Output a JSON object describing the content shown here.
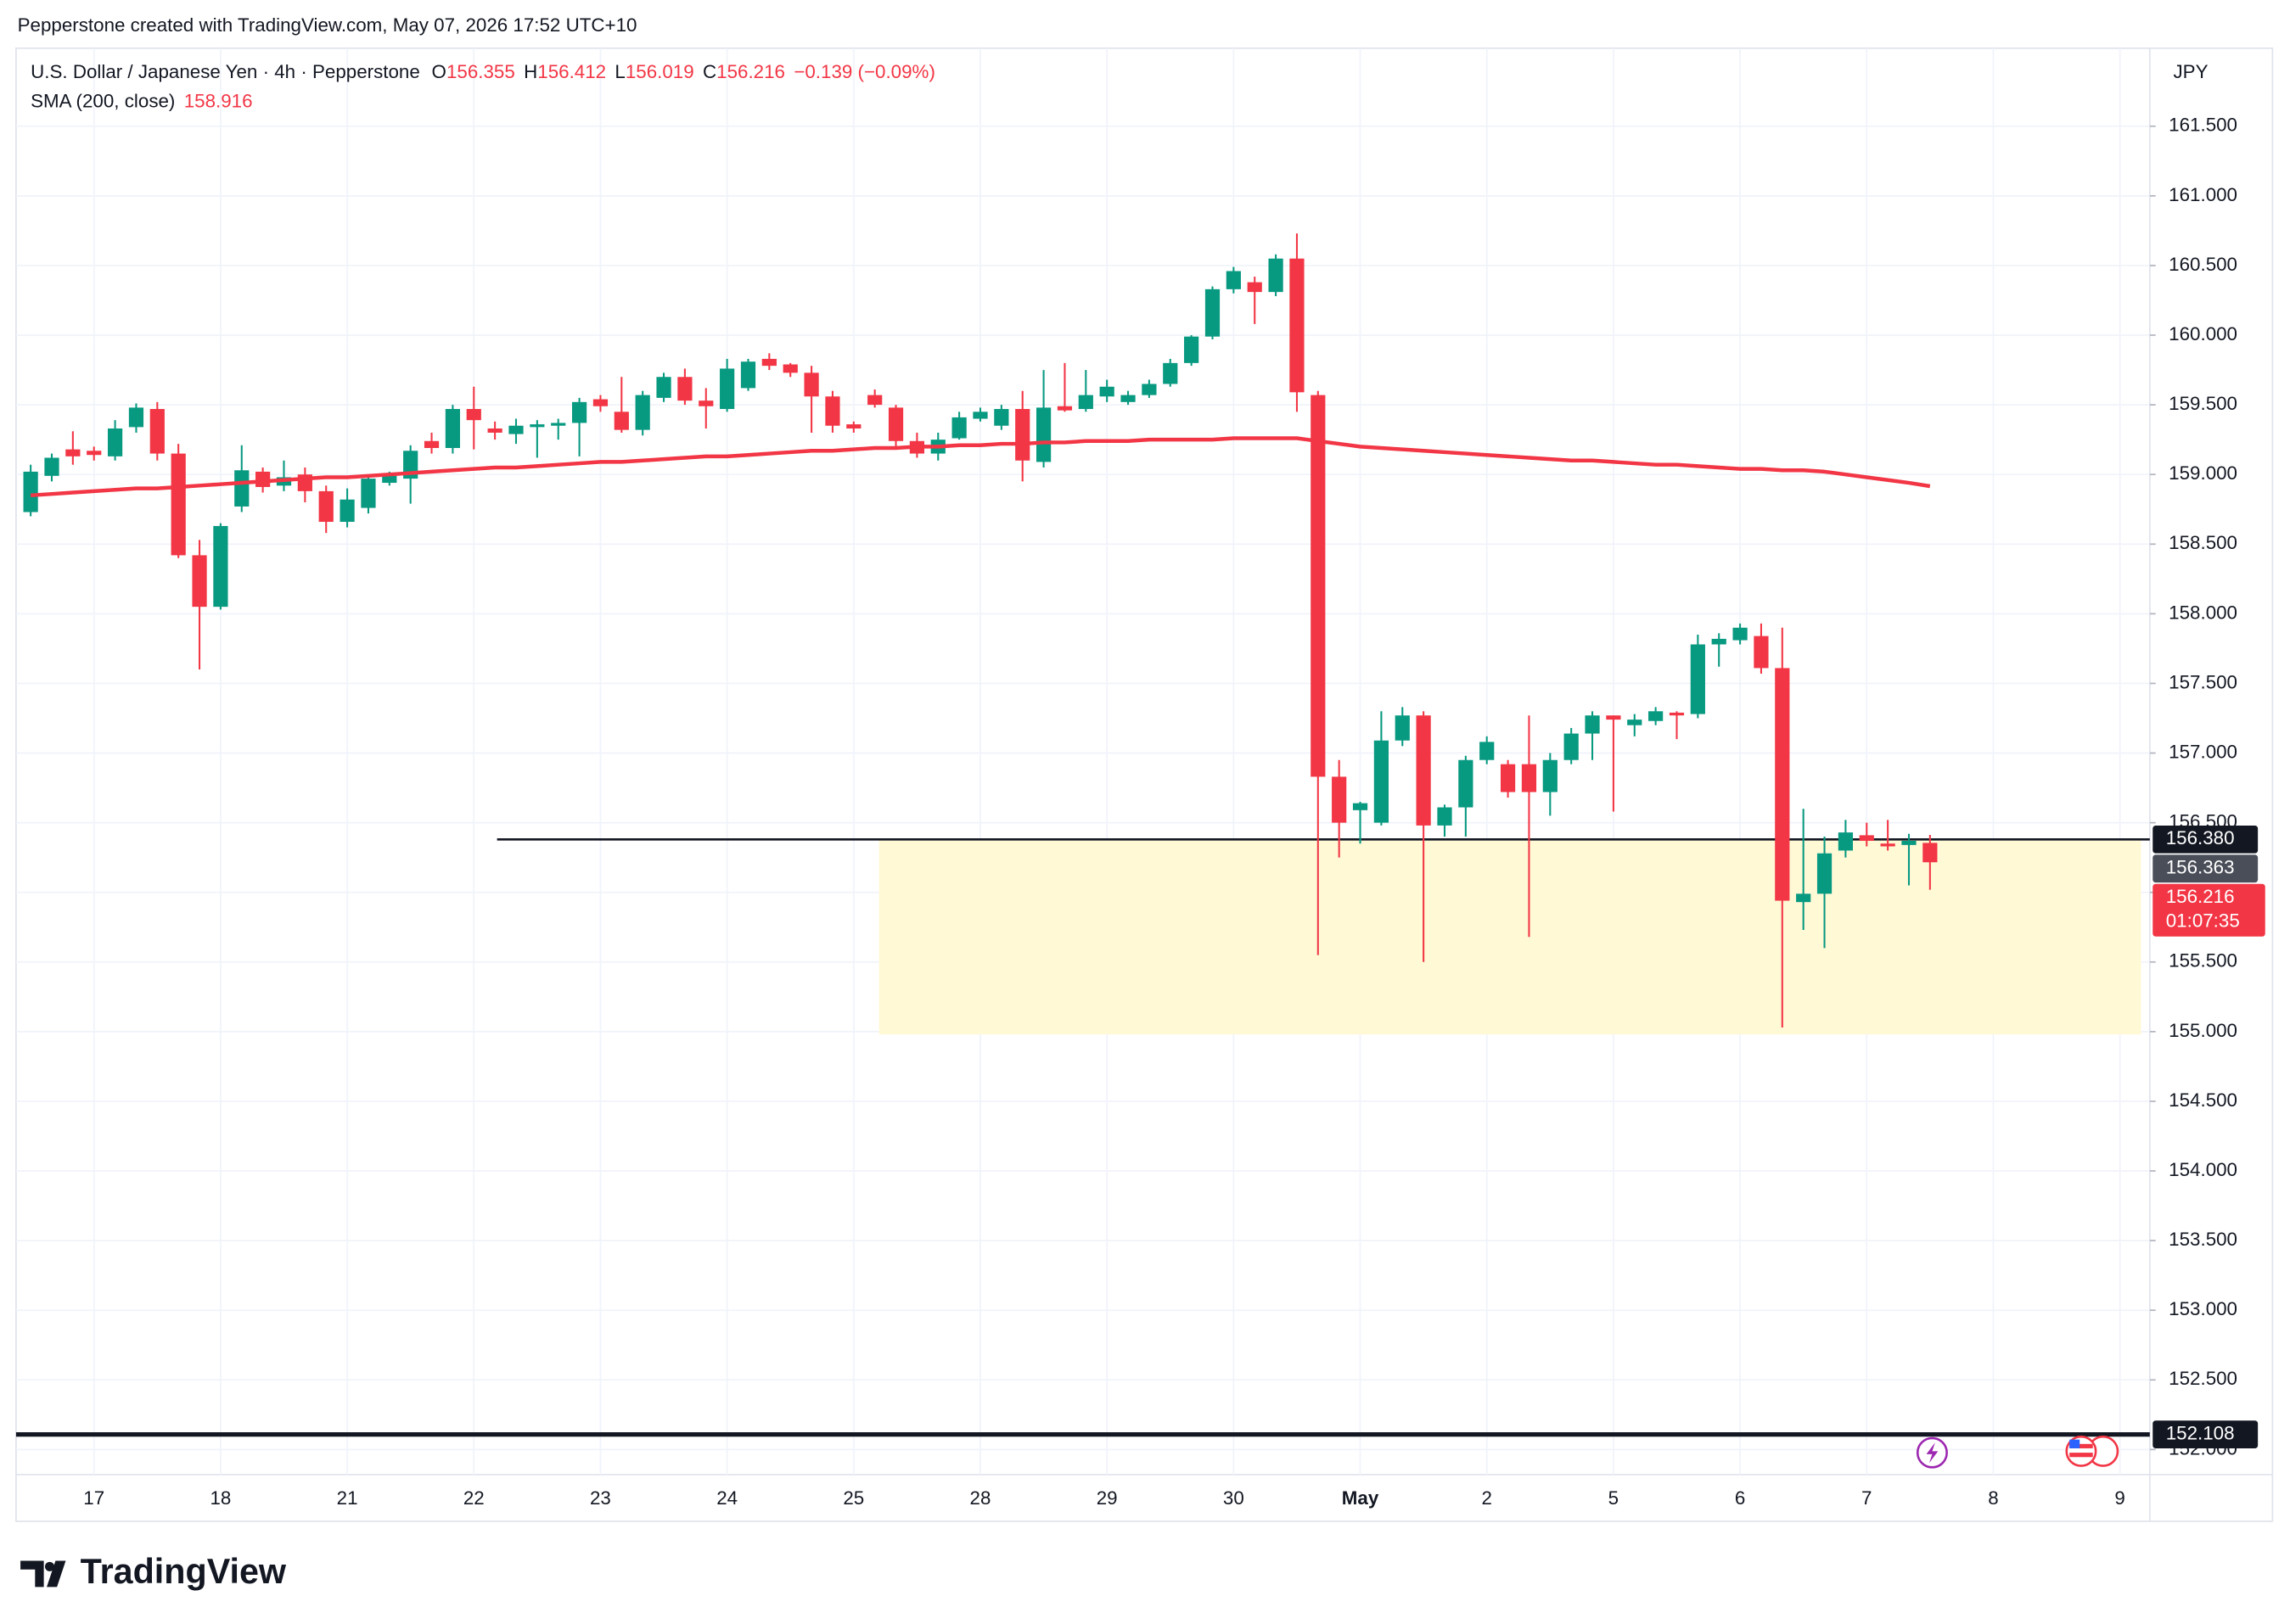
{
  "header": {
    "credit": "Pepperstone created with TradingView.com, May 07, 2026 17:52 UTC+10"
  },
  "chart_data": {
    "type": "candlestick",
    "title": "U.S. Dollar / Japanese Yen · 4h · Pepperstone",
    "ohlc_labels": [
      "O",
      "H",
      "L",
      "C"
    ],
    "change": "−0.139 (−0.09%)",
    "currency": "JPY",
    "categories": [
      null,
      null,
      null,
      "17",
      null,
      null,
      null,
      null,
      null,
      "18",
      null,
      null,
      null,
      null,
      null,
      "21",
      null,
      null,
      null,
      null,
      null,
      "22",
      null,
      null,
      null,
      null,
      null,
      "23",
      null,
      null,
      null,
      null,
      null,
      "24",
      null,
      null,
      null,
      null,
      null,
      "25",
      null,
      null,
      null,
      null,
      null,
      "28",
      null,
      null,
      null,
      null,
      null,
      "29",
      null,
      null,
      null,
      null,
      null,
      "30",
      null,
      null,
      null,
      null,
      null,
      "May",
      null,
      null,
      null,
      null,
      null,
      "2",
      null,
      null,
      null,
      null,
      null,
      "5",
      null,
      null,
      null,
      null,
      null,
      "6",
      null,
      null,
      null,
      null,
      null,
      "7",
      null,
      null,
      null,
      null,
      null,
      "8",
      null,
      null,
      null,
      null,
      null,
      "9",
      null
    ],
    "open": [
      158.73,
      158.99,
      159.18,
      159.17,
      159.13,
      159.34,
      159.47,
      159.15,
      158.42,
      158.05,
      158.77,
      159.02,
      158.92,
      159.0,
      158.88,
      158.66,
      158.76,
      158.94,
      158.97,
      159.24,
      159.19,
      159.47,
      159.33,
      159.29,
      159.34,
      159.35,
      159.37,
      159.54,
      159.45,
      159.32,
      159.55,
      159.7,
      159.53,
      159.47,
      159.62,
      159.83,
      159.79,
      159.73,
      159.56,
      159.36,
      159.57,
      159.48,
      159.24,
      159.15,
      159.26,
      159.4,
      159.35,
      159.47,
      159.09,
      159.49,
      159.47,
      159.56,
      159.52,
      159.57,
      159.65,
      159.8,
      159.99,
      160.33,
      160.38,
      160.31,
      160.55,
      159.57,
      156.83,
      156.59,
      156.5,
      157.09,
      157.27,
      156.48,
      156.61,
      156.95,
      156.92,
      156.92,
      156.72,
      156.95,
      157.14,
      157.27,
      157.2,
      157.23,
      157.29,
      157.28,
      157.78,
      157.81,
      157.84,
      157.61,
      155.93,
      155.99,
      156.3,
      156.41,
      156.35,
      156.34,
      156.355,
      null,
      null,
      null,
      null,
      null,
      null,
      null,
      null,
      null,
      null
    ],
    "high": [
      159.07,
      159.15,
      159.31,
      159.2,
      159.39,
      159.51,
      159.52,
      159.22,
      158.53,
      158.65,
      159.21,
      159.05,
      159.1,
      159.05,
      158.92,
      158.9,
      159.0,
      159.02,
      159.21,
      159.3,
      159.5,
      159.63,
      159.38,
      159.4,
      159.39,
      159.4,
      159.55,
      159.57,
      159.7,
      159.6,
      159.73,
      159.76,
      159.62,
      159.83,
      159.83,
      159.87,
      159.8,
      159.78,
      159.6,
      159.38,
      159.61,
      159.5,
      159.3,
      159.3,
      159.45,
      159.48,
      159.5,
      159.6,
      159.75,
      159.8,
      159.75,
      159.68,
      159.6,
      159.68,
      159.83,
      160.0,
      160.35,
      160.49,
      160.42,
      160.58,
      160.73,
      159.6,
      156.95,
      156.65,
      157.3,
      157.33,
      157.3,
      156.63,
      156.98,
      157.12,
      156.95,
      157.27,
      157.0,
      157.18,
      157.3,
      157.27,
      157.28,
      157.33,
      157.3,
      157.85,
      157.86,
      157.93,
      157.93,
      157.9,
      156.6,
      156.4,
      156.52,
      156.5,
      156.52,
      156.42,
      156.412,
      null,
      null,
      null,
      null,
      null,
      null,
      null,
      null,
      null,
      null
    ],
    "low": [
      158.7,
      158.95,
      159.07,
      159.1,
      159.1,
      159.3,
      159.1,
      158.4,
      157.6,
      158.03,
      158.73,
      158.87,
      158.88,
      158.8,
      158.58,
      158.62,
      158.72,
      158.92,
      158.79,
      159.15,
      159.15,
      159.18,
      159.25,
      159.22,
      159.12,
      159.25,
      159.13,
      159.45,
      159.3,
      159.28,
      159.52,
      159.5,
      159.33,
      159.45,
      159.6,
      159.75,
      159.7,
      159.3,
      159.3,
      159.3,
      159.48,
      159.2,
      159.12,
      159.1,
      159.25,
      159.38,
      159.32,
      158.95,
      159.05,
      159.45,
      159.45,
      159.52,
      159.5,
      159.55,
      159.63,
      159.78,
      159.97,
      160.3,
      160.08,
      160.28,
      159.45,
      155.55,
      156.25,
      156.35,
      156.48,
      157.05,
      155.5,
      156.4,
      156.4,
      156.92,
      156.68,
      155.68,
      156.55,
      156.92,
      156.95,
      156.58,
      157.12,
      157.2,
      157.1,
      157.25,
      157.62,
      157.78,
      157.57,
      155.03,
      155.73,
      155.6,
      156.25,
      156.33,
      156.3,
      156.05,
      156.019,
      null,
      null,
      null,
      null,
      null,
      null,
      null,
      null,
      null,
      null
    ],
    "close": [
      159.02,
      159.12,
      159.13,
      159.14,
      159.33,
      159.48,
      159.15,
      158.42,
      158.05,
      158.63,
      159.03,
      158.91,
      158.98,
      158.88,
      158.66,
      158.82,
      158.97,
      158.99,
      159.17,
      159.19,
      159.47,
      159.39,
      159.3,
      159.35,
      159.36,
      159.37,
      159.52,
      159.49,
      159.32,
      159.57,
      159.7,
      159.53,
      159.49,
      159.76,
      159.81,
      159.78,
      159.73,
      159.56,
      159.35,
      159.33,
      159.5,
      159.24,
      159.15,
      159.25,
      159.41,
      159.45,
      159.47,
      159.1,
      159.48,
      159.46,
      159.57,
      159.63,
      159.57,
      159.65,
      159.8,
      159.99,
      160.33,
      160.46,
      160.31,
      160.55,
      159.59,
      156.83,
      156.5,
      156.64,
      157.09,
      157.27,
      156.48,
      156.61,
      156.95,
      157.08,
      156.72,
      156.72,
      156.95,
      157.14,
      157.27,
      157.24,
      157.24,
      157.3,
      157.27,
      157.78,
      157.82,
      157.9,
      157.61,
      155.94,
      155.99,
      156.28,
      156.43,
      156.37,
      156.33,
      156.37,
      156.216,
      null,
      null,
      null,
      null,
      null,
      null,
      null,
      null,
      null,
      null
    ],
    "up_color": "#089981",
    "down_color": "#f23645",
    "series": [
      {
        "name": "SMA (200, close)",
        "color": "#f23645",
        "values": [
          158.85,
          158.86,
          158.87,
          158.88,
          158.89,
          158.9,
          158.9,
          158.91,
          158.92,
          158.93,
          158.94,
          158.95,
          158.96,
          158.97,
          158.98,
          158.98,
          158.99,
          159.0,
          159.01,
          159.02,
          159.03,
          159.04,
          159.05,
          159.05,
          159.06,
          159.07,
          159.08,
          159.09,
          159.09,
          159.1,
          159.11,
          159.12,
          159.13,
          159.13,
          159.14,
          159.15,
          159.16,
          159.17,
          159.17,
          159.18,
          159.19,
          159.19,
          159.2,
          159.2,
          159.21,
          159.21,
          159.22,
          159.22,
          159.23,
          159.23,
          159.24,
          159.24,
          159.24,
          159.25,
          159.25,
          159.25,
          159.25,
          159.26,
          159.26,
          159.26,
          159.26,
          159.24,
          159.22,
          159.2,
          159.19,
          159.18,
          159.17,
          159.16,
          159.15,
          159.14,
          159.13,
          159.12,
          159.11,
          159.1,
          159.1,
          159.09,
          159.08,
          159.07,
          159.07,
          159.06,
          159.05,
          159.04,
          159.04,
          159.03,
          159.03,
          159.02,
          159.0,
          158.98,
          158.96,
          158.94,
          158.916,
          null,
          null,
          null,
          null,
          null,
          null,
          null,
          null,
          null,
          null
        ]
      }
    ],
    "ylim": [
      151.82,
      162.06
    ],
    "yticks": [
      {
        "value": 152.0,
        "label": "152.000"
      },
      {
        "value": 152.5,
        "label": "152.500"
      },
      {
        "value": 153.0,
        "label": "153.000"
      },
      {
        "value": 153.5,
        "label": "153.500"
      },
      {
        "value": 154.0,
        "label": "154.000"
      },
      {
        "value": 154.5,
        "label": "154.500"
      },
      {
        "value": 155.0,
        "label": "155.000"
      },
      {
        "value": 155.5,
        "label": "155.500"
      },
      {
        "value": 156.0,
        "label": "156.000"
      },
      {
        "value": 156.5,
        "label": "156.500"
      },
      {
        "value": 157.0,
        "label": "157.000"
      },
      {
        "value": 157.5,
        "label": "157.500"
      },
      {
        "value": 158.0,
        "label": "158.000"
      },
      {
        "value": 158.5,
        "label": "158.500"
      },
      {
        "value": 159.0,
        "label": "159.000"
      },
      {
        "value": 159.5,
        "label": "159.500"
      },
      {
        "value": 160.0,
        "label": "160.000"
      },
      {
        "value": 160.5,
        "label": "160.500"
      },
      {
        "value": 161.0,
        "label": "161.000"
      },
      {
        "value": 161.5,
        "label": "161.500"
      }
    ],
    "grid": true,
    "hlines": [
      {
        "value": 156.38,
        "label": "156.380",
        "x_start": 22.1
      },
      {
        "value": 152.108,
        "label": "152.108"
      }
    ],
    "zone": {
      "top": 156.38,
      "bottom": 154.98,
      "x_start": 40.2,
      "color": "#fff9d6"
    },
    "price_labels": [
      {
        "value": 156.363,
        "label": "156.363",
        "color": "#4a4e59"
      },
      {
        "value": 156.216,
        "label": "156.216",
        "countdown": "01:07:35",
        "color": "#f23645"
      }
    ]
  },
  "branding": "TradingView"
}
